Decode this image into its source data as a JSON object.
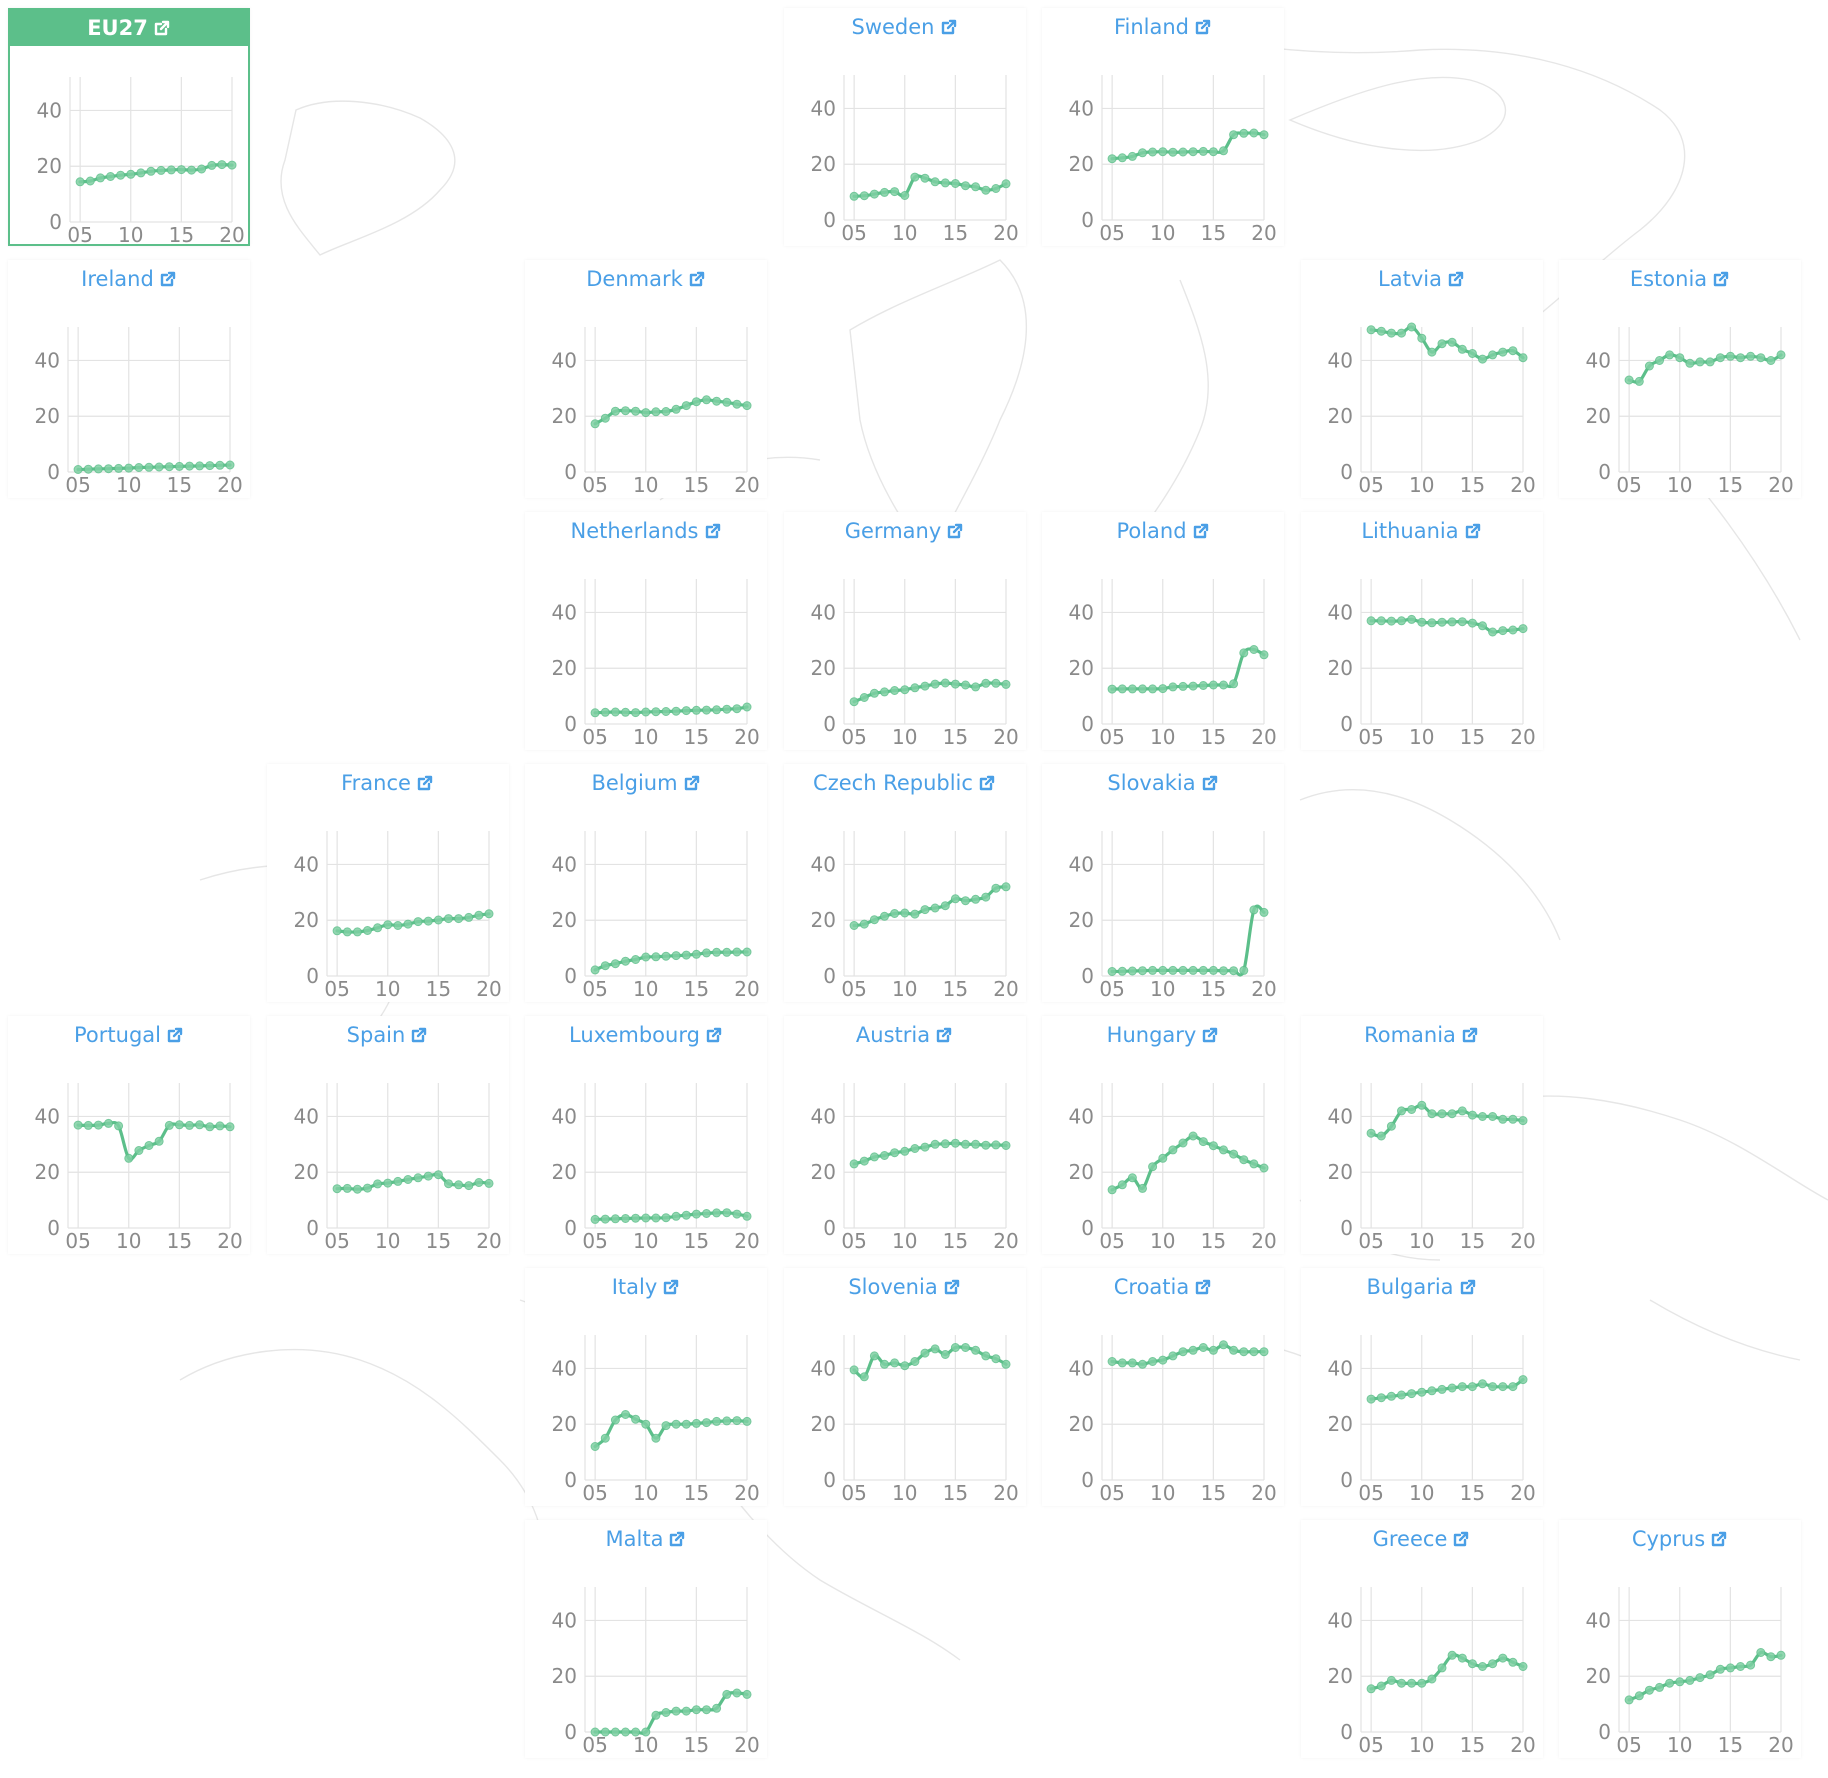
{
  "chart_data": {
    "type": "line",
    "layout": "small-multiples",
    "x_ticks": [
      "05",
      "10",
      "15",
      "20"
    ],
    "y_ticks": [
      "0",
      "20",
      "40"
    ],
    "ylim": [
      0,
      52
    ],
    "xlim": [
      2004,
      2020
    ],
    "grid": true,
    "series_color": "#5cbf8a",
    "header_color": "#4a9fe6",
    "highlight_color": "#5cbf8a",
    "link_icon": "external-link-icon",
    "panels": [
      {
        "name": "EU27",
        "highlight": true,
        "values": [
          14.4,
          14.7,
          15.8,
          16.3,
          16.8,
          17.1,
          17.6,
          18.2,
          18.5,
          18.7,
          18.8,
          18.6,
          19.0,
          20.3,
          20.6,
          20.4
        ]
      },
      {
        "name": "Sweden",
        "values": [
          8.5,
          8.7,
          9.3,
          9.9,
          10.2,
          8.8,
          15.4,
          15.0,
          13.7,
          13.3,
          13.1,
          12.3,
          11.9,
          10.7,
          11.3,
          13.0
        ]
      },
      {
        "name": "Finland",
        "values": [
          22.0,
          22.3,
          22.8,
          24.1,
          24.4,
          24.5,
          24.3,
          24.4,
          24.5,
          24.6,
          24.5,
          24.8,
          30.6,
          31.1,
          31.2,
          30.6
        ]
      },
      {
        "name": "Ireland",
        "values": [
          0.9,
          1.0,
          1.1,
          1.2,
          1.3,
          1.4,
          1.6,
          1.7,
          1.8,
          1.9,
          2.0,
          2.1,
          2.2,
          2.3,
          2.4,
          2.5
        ]
      },
      {
        "name": "Denmark",
        "values": [
          17.3,
          19.3,
          21.8,
          22.0,
          21.8,
          21.3,
          21.6,
          21.7,
          22.5,
          23.8,
          25.2,
          25.9,
          25.4,
          25.0,
          24.3,
          23.8
        ]
      },
      {
        "name": "Latvia",
        "values": [
          51.0,
          50.5,
          49.8,
          49.8,
          52.0,
          48.0,
          43.0,
          46.0,
          46.5,
          44.0,
          42.5,
          40.5,
          42.0,
          43.0,
          43.5,
          41.0
        ]
      },
      {
        "name": "Estonia",
        "values": [
          33.0,
          32.5,
          38.0,
          40.0,
          42.0,
          41.0,
          39.0,
          39.5,
          39.5,
          41.0,
          41.5,
          41.0,
          41.5,
          41.0,
          40.0,
          42.0
        ]
      },
      {
        "name": "Netherlands",
        "values": [
          4.0,
          4.2,
          4.3,
          4.2,
          4.1,
          4.3,
          4.4,
          4.5,
          4.6,
          4.8,
          4.9,
          5.0,
          5.1,
          5.3,
          5.5,
          6.1
        ]
      },
      {
        "name": "Germany",
        "values": [
          8.0,
          9.5,
          11.0,
          11.5,
          12.0,
          12.3,
          13.0,
          13.6,
          14.3,
          14.7,
          14.3,
          14.0,
          13.3,
          14.6,
          14.6,
          14.2
        ]
      },
      {
        "name": "Poland",
        "values": [
          12.5,
          12.6,
          12.6,
          12.6,
          12.6,
          12.7,
          13.3,
          13.5,
          13.6,
          13.8,
          14.0,
          14.0,
          14.4,
          25.5,
          26.7,
          24.8
        ]
      },
      {
        "name": "Lithuania",
        "values": [
          37.0,
          37.0,
          36.9,
          37.0,
          37.5,
          36.5,
          36.3,
          36.5,
          36.6,
          36.7,
          36.2,
          35.2,
          33.0,
          33.5,
          33.7,
          34.2
        ]
      },
      {
        "name": "France",
        "values": [
          16.2,
          15.8,
          15.8,
          16.3,
          17.3,
          18.4,
          18.1,
          18.6,
          19.5,
          19.7,
          20.1,
          20.6,
          20.6,
          21.0,
          21.8,
          22.3
        ]
      },
      {
        "name": "Belgium",
        "values": [
          2.2,
          3.7,
          4.4,
          5.3,
          5.9,
          6.8,
          6.9,
          7.1,
          7.3,
          7.5,
          7.8,
          8.3,
          8.5,
          8.5,
          8.6,
          8.6
        ]
      },
      {
        "name": "Czech Republic",
        "values": [
          18.1,
          18.6,
          20.2,
          21.4,
          22.4,
          22.6,
          22.2,
          23.8,
          24.4,
          25.2,
          27.7,
          27.0,
          27.5,
          28.3,
          31.5,
          32.0
        ]
      },
      {
        "name": "Slovakia",
        "values": [
          1.6,
          1.7,
          1.8,
          1.9,
          2.0,
          2.0,
          2.0,
          2.0,
          2.0,
          2.0,
          2.0,
          1.9,
          1.9,
          2.0,
          23.7,
          22.8
        ]
      },
      {
        "name": "Portugal",
        "values": [
          36.9,
          36.8,
          36.9,
          37.5,
          36.6,
          25.0,
          27.8,
          29.6,
          31.1,
          36.8,
          37.0,
          36.8,
          37.0,
          36.3,
          36.6,
          36.3
        ]
      },
      {
        "name": "Spain",
        "values": [
          14.1,
          14.2,
          13.9,
          14.3,
          15.8,
          16.1,
          16.7,
          17.4,
          18.0,
          18.6,
          19.1,
          15.9,
          15.5,
          15.2,
          16.3,
          16.0
        ]
      },
      {
        "name": "Luxembourg",
        "values": [
          3.1,
          3.2,
          3.3,
          3.4,
          3.5,
          3.6,
          3.6,
          3.7,
          4.2,
          4.6,
          5.0,
          5.2,
          5.4,
          5.5,
          5.0,
          4.2
        ]
      },
      {
        "name": "Austria",
        "values": [
          23.0,
          24.0,
          25.5,
          26.0,
          27.0,
          27.5,
          28.5,
          29.0,
          30.0,
          30.2,
          30.4,
          30.0,
          30.0,
          29.7,
          29.8,
          29.6
        ]
      },
      {
        "name": "Hungary",
        "values": [
          13.7,
          15.5,
          18.0,
          14.2,
          22.0,
          25.0,
          28.0,
          30.5,
          33.0,
          31.0,
          29.5,
          28.0,
          26.5,
          24.5,
          23.0,
          21.5
        ]
      },
      {
        "name": "Romania",
        "values": [
          34.0,
          33.0,
          36.5,
          42.0,
          42.5,
          44.0,
          41.0,
          41.0,
          41.0,
          42.0,
          40.5,
          40.0,
          40.0,
          39.0,
          39.0,
          38.5
        ]
      },
      {
        "name": "Italy",
        "values": [
          12.0,
          15.0,
          21.5,
          23.5,
          21.8,
          20.0,
          15.0,
          19.5,
          20.0,
          20.0,
          20.3,
          20.6,
          21.0,
          21.2,
          21.3,
          21.0
        ]
      },
      {
        "name": "Slovenia",
        "values": [
          39.5,
          37.0,
          44.5,
          41.5,
          42.0,
          41.0,
          42.5,
          45.5,
          47.0,
          45.0,
          47.5,
          47.5,
          46.5,
          44.5,
          43.5,
          41.5
        ]
      },
      {
        "name": "Croatia",
        "values": [
          42.5,
          42.0,
          42.0,
          41.5,
          42.5,
          43.0,
          44.5,
          46.0,
          46.5,
          47.5,
          46.5,
          48.5,
          46.5,
          46.0,
          46.0,
          46.0
        ]
      },
      {
        "name": "Bulgaria",
        "values": [
          29.0,
          29.5,
          30.0,
          30.5,
          31.0,
          31.5,
          32.0,
          32.5,
          33.0,
          33.5,
          33.5,
          34.5,
          33.5,
          33.5,
          33.5,
          36.0
        ]
      },
      {
        "name": "Malta",
        "values": [
          0.0,
          0.0,
          0.0,
          0.0,
          0.0,
          0.0,
          6.0,
          7.0,
          7.5,
          7.5,
          8.0,
          8.0,
          8.5,
          13.5,
          14.0,
          13.5
        ]
      },
      {
        "name": "Greece",
        "values": [
          15.5,
          16.5,
          18.5,
          17.5,
          17.5,
          17.5,
          19.0,
          23.0,
          27.5,
          26.5,
          24.5,
          23.5,
          24.5,
          26.5,
          25.0,
          23.5
        ]
      },
      {
        "name": "Cyprus",
        "values": [
          11.5,
          13.0,
          15.0,
          16.0,
          17.5,
          18.0,
          18.5,
          19.5,
          20.5,
          22.5,
          23.0,
          23.5,
          24.0,
          28.5,
          27.0,
          27.5
        ]
      }
    ]
  }
}
